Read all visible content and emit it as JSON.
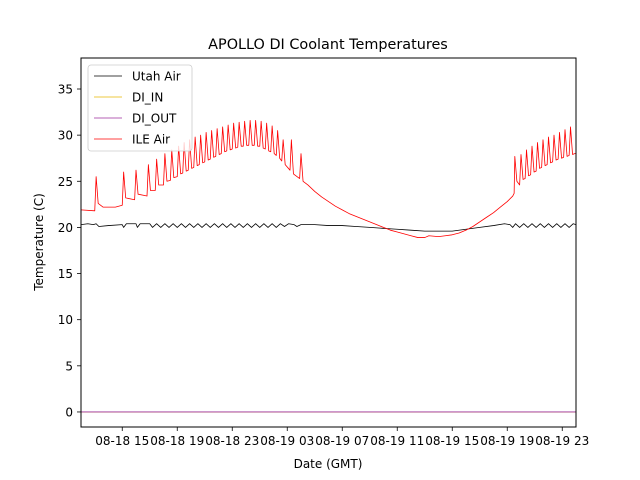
{
  "chart_data": {
    "type": "line",
    "title": "APOLLO DI Coolant Temperatures",
    "xlabel": "Date (GMT)",
    "ylabel": "Temperature (C)",
    "x_unit": "hours since 08-18 12:00 GMT",
    "xlim": [
      0,
      36
    ],
    "ylim": [
      -1.63,
      38.36
    ],
    "grid": false,
    "legend_position": "top-left",
    "x_ticks": [
      {
        "value": 3,
        "label": "08-18 15"
      },
      {
        "value": 7,
        "label": "08-18 19"
      },
      {
        "value": 11,
        "label": "08-18 23"
      },
      {
        "value": 15,
        "label": "08-19 03"
      },
      {
        "value": 19,
        "label": "08-19 07"
      },
      {
        "value": 23,
        "label": "08-19 11"
      },
      {
        "value": 27,
        "label": "08-19 15"
      },
      {
        "value": 31,
        "label": "08-19 19"
      },
      {
        "value": 35,
        "label": "08-19 23"
      }
    ],
    "y_ticks": [
      {
        "value": 0,
        "label": "0"
      },
      {
        "value": 5,
        "label": "5"
      },
      {
        "value": 10,
        "label": "10"
      },
      {
        "value": 15,
        "label": "15"
      },
      {
        "value": 20,
        "label": "20"
      },
      {
        "value": 25,
        "label": "25"
      },
      {
        "value": 30,
        "label": "30"
      },
      {
        "value": 35,
        "label": "35"
      }
    ],
    "series": [
      {
        "name": "Utah Air",
        "color": "#000000",
        "points": [
          [
            0,
            20.3
          ],
          [
            0.5,
            20.4
          ],
          [
            0.9,
            20.3
          ],
          [
            1.1,
            20.4
          ],
          [
            1.3,
            20.1
          ],
          [
            2,
            20.2
          ],
          [
            3,
            20.3
          ],
          [
            3.1,
            20.0
          ],
          [
            3.3,
            20.4
          ],
          [
            4,
            20.4
          ],
          [
            4.1,
            20.0
          ],
          [
            4.3,
            20.4
          ],
          [
            5,
            20.4
          ],
          [
            5.2,
            20.0
          ],
          [
            5.5,
            20.4
          ],
          [
            5.8,
            20.0
          ],
          [
            6.1,
            20.4
          ],
          [
            6.4,
            20.0
          ],
          [
            6.7,
            20.4
          ],
          [
            7,
            20.0
          ],
          [
            7.3,
            20.4
          ],
          [
            7.6,
            20.0
          ],
          [
            7.9,
            20.4
          ],
          [
            8.2,
            20.0
          ],
          [
            8.5,
            20.4
          ],
          [
            8.8,
            20.0
          ],
          [
            9.1,
            20.4
          ],
          [
            9.4,
            20.0
          ],
          [
            9.7,
            20.4
          ],
          [
            10,
            20.0
          ],
          [
            10.3,
            20.4
          ],
          [
            10.6,
            20.0
          ],
          [
            10.9,
            20.4
          ],
          [
            11.2,
            20.0
          ],
          [
            11.5,
            20.4
          ],
          [
            11.8,
            20.0
          ],
          [
            12.1,
            20.4
          ],
          [
            12.4,
            20.0
          ],
          [
            12.7,
            20.4
          ],
          [
            13,
            20.0
          ],
          [
            13.3,
            20.4
          ],
          [
            13.6,
            20.0
          ],
          [
            13.9,
            20.4
          ],
          [
            14.2,
            20.0
          ],
          [
            14.5,
            20.4
          ],
          [
            14.8,
            20.1
          ],
          [
            15.1,
            20.4
          ],
          [
            15.5,
            20.3
          ],
          [
            15.7,
            20.1
          ],
          [
            16,
            20.3
          ],
          [
            17,
            20.3
          ],
          [
            18,
            20.2
          ],
          [
            19,
            20.2
          ],
          [
            20,
            20.1
          ],
          [
            21,
            20.0
          ],
          [
            22,
            19.9
          ],
          [
            23,
            19.8
          ],
          [
            24,
            19.7
          ],
          [
            25,
            19.6
          ],
          [
            26,
            19.6
          ],
          [
            27,
            19.6
          ],
          [
            28,
            19.8
          ],
          [
            29,
            20.0
          ],
          [
            30,
            20.2
          ],
          [
            30.8,
            20.4
          ],
          [
            31.2,
            20.3
          ],
          [
            31.4,
            20.0
          ],
          [
            31.6,
            20.4
          ],
          [
            31.9,
            20.0
          ],
          [
            32.2,
            20.4
          ],
          [
            32.5,
            20.0
          ],
          [
            32.8,
            20.4
          ],
          [
            33.1,
            20.0
          ],
          [
            33.4,
            20.4
          ],
          [
            33.7,
            20.0
          ],
          [
            34,
            20.4
          ],
          [
            34.3,
            20.0
          ],
          [
            34.6,
            20.4
          ],
          [
            34.9,
            20.0
          ],
          [
            35.2,
            20.4
          ],
          [
            35.5,
            20.0
          ],
          [
            35.8,
            20.4
          ],
          [
            36,
            20.3
          ]
        ]
      },
      {
        "name": "DI_IN",
        "color": "#e6b800",
        "points": [
          [
            0,
            0
          ],
          [
            36,
            0
          ]
        ]
      },
      {
        "name": "DI_OUT",
        "color": "#9b2d9b",
        "points": [
          [
            0,
            0
          ],
          [
            36,
            0
          ]
        ]
      },
      {
        "name": "ILE Air",
        "color": "#ff0000",
        "points": [
          [
            0,
            21.9
          ],
          [
            1.0,
            21.8
          ],
          [
            1.1,
            25.5
          ],
          [
            1.25,
            22.6
          ],
          [
            1.6,
            22.2
          ],
          [
            2.5,
            22.2
          ],
          [
            3.0,
            22.4
          ],
          [
            3.1,
            26.0
          ],
          [
            3.25,
            23.2
          ],
          [
            3.9,
            23.0
          ],
          [
            4.0,
            26.2
          ],
          [
            4.15,
            23.6
          ],
          [
            4.8,
            23.4
          ],
          [
            4.9,
            26.8
          ],
          [
            5.05,
            24.0
          ],
          [
            5.4,
            24.0
          ],
          [
            5.5,
            27.4
          ],
          [
            5.65,
            24.6
          ],
          [
            6.0,
            24.6
          ],
          [
            6.1,
            28.0
          ],
          [
            6.25,
            25.0
          ],
          [
            6.5,
            25.1
          ],
          [
            6.6,
            28.4
          ],
          [
            6.75,
            25.4
          ],
          [
            7.0,
            25.5
          ],
          [
            7.1,
            28.8
          ],
          [
            7.25,
            25.8
          ],
          [
            7.4,
            25.9
          ],
          [
            7.5,
            29.2
          ],
          [
            7.65,
            26.1
          ],
          [
            7.8,
            26.2
          ],
          [
            7.9,
            29.5
          ],
          [
            8.05,
            26.4
          ],
          [
            8.2,
            26.5
          ],
          [
            8.3,
            29.8
          ],
          [
            8.45,
            26.7
          ],
          [
            8.6,
            26.8
          ],
          [
            8.7,
            30.0
          ],
          [
            8.85,
            27.0
          ],
          [
            9.0,
            27.1
          ],
          [
            9.1,
            30.3
          ],
          [
            9.25,
            27.3
          ],
          [
            9.4,
            27.4
          ],
          [
            9.5,
            30.5
          ],
          [
            9.65,
            27.6
          ],
          [
            9.8,
            27.7
          ],
          [
            9.9,
            30.7
          ],
          [
            10.05,
            27.9
          ],
          [
            10.2,
            28.0
          ],
          [
            10.3,
            30.9
          ],
          [
            10.45,
            28.2
          ],
          [
            10.6,
            28.3
          ],
          [
            10.7,
            31.1
          ],
          [
            10.85,
            28.4
          ],
          [
            11.0,
            28.5
          ],
          [
            11.1,
            31.3
          ],
          [
            11.25,
            28.6
          ],
          [
            11.4,
            28.7
          ],
          [
            11.5,
            31.4
          ],
          [
            11.65,
            28.8
          ],
          [
            11.8,
            28.8
          ],
          [
            11.9,
            31.5
          ],
          [
            12.05,
            28.9
          ],
          [
            12.2,
            28.9
          ],
          [
            12.3,
            31.6
          ],
          [
            12.45,
            28.9
          ],
          [
            12.6,
            28.9
          ],
          [
            12.7,
            31.6
          ],
          [
            12.85,
            28.8
          ],
          [
            13.0,
            28.8
          ],
          [
            13.1,
            31.5
          ],
          [
            13.25,
            28.6
          ],
          [
            13.4,
            28.5
          ],
          [
            13.5,
            31.3
          ],
          [
            13.65,
            28.3
          ],
          [
            13.8,
            28.2
          ],
          [
            13.9,
            31.0
          ],
          [
            14.05,
            28.0
          ],
          [
            14.2,
            27.8
          ],
          [
            14.3,
            30.5
          ],
          [
            14.45,
            27.5
          ],
          [
            14.6,
            27.2
          ],
          [
            14.7,
            29.5
          ],
          [
            14.85,
            26.8
          ],
          [
            15.2,
            26.2
          ],
          [
            15.3,
            29.5
          ],
          [
            15.45,
            25.8
          ],
          [
            15.9,
            25.3
          ],
          [
            16.0,
            28.0
          ],
          [
            16.15,
            25.0
          ],
          [
            16.5,
            24.6
          ],
          [
            17,
            23.9
          ],
          [
            17.5,
            23.3
          ],
          [
            18,
            22.8
          ],
          [
            18.5,
            22.3
          ],
          [
            19,
            21.9
          ],
          [
            19.5,
            21.5
          ],
          [
            20,
            21.2
          ],
          [
            20.5,
            20.9
          ],
          [
            21,
            20.6
          ],
          [
            21.5,
            20.3
          ],
          [
            22,
            20.0
          ],
          [
            22.5,
            19.7
          ],
          [
            23,
            19.5
          ],
          [
            23.5,
            19.3
          ],
          [
            24,
            19.1
          ],
          [
            24.5,
            18.9
          ],
          [
            25,
            18.9
          ],
          [
            25.3,
            19.1
          ],
          [
            26,
            19.0
          ],
          [
            26.5,
            19.1
          ],
          [
            27,
            19.2
          ],
          [
            27.5,
            19.4
          ],
          [
            28,
            19.7
          ],
          [
            28.5,
            20.1
          ],
          [
            29,
            20.6
          ],
          [
            29.5,
            21.1
          ],
          [
            30,
            21.6
          ],
          [
            30.5,
            22.2
          ],
          [
            31,
            22.8
          ],
          [
            31.4,
            23.4
          ],
          [
            31.5,
            23.7
          ],
          [
            31.55,
            27.7
          ],
          [
            31.7,
            25.0
          ],
          [
            31.9,
            24.6
          ],
          [
            32.0,
            27.9
          ],
          [
            32.15,
            25.2
          ],
          [
            32.3,
            25.3
          ],
          [
            32.4,
            28.4
          ],
          [
            32.55,
            25.6
          ],
          [
            32.7,
            25.7
          ],
          [
            32.8,
            28.8
          ],
          [
            32.95,
            26.0
          ],
          [
            33.1,
            26.1
          ],
          [
            33.2,
            29.2
          ],
          [
            33.35,
            26.4
          ],
          [
            33.5,
            26.5
          ],
          [
            33.6,
            29.5
          ],
          [
            33.75,
            26.7
          ],
          [
            33.9,
            26.8
          ],
          [
            34.0,
            29.8
          ],
          [
            34.15,
            27.0
          ],
          [
            34.3,
            27.1
          ],
          [
            34.4,
            30.0
          ],
          [
            34.55,
            27.3
          ],
          [
            34.7,
            27.4
          ],
          [
            34.8,
            30.3
          ],
          [
            34.95,
            27.5
          ],
          [
            35.1,
            27.6
          ],
          [
            35.2,
            30.6
          ],
          [
            35.35,
            27.7
          ],
          [
            35.5,
            27.8
          ],
          [
            35.6,
            30.9
          ],
          [
            35.75,
            27.9
          ],
          [
            35.9,
            28.0
          ],
          [
            36,
            28.0
          ]
        ]
      }
    ]
  }
}
